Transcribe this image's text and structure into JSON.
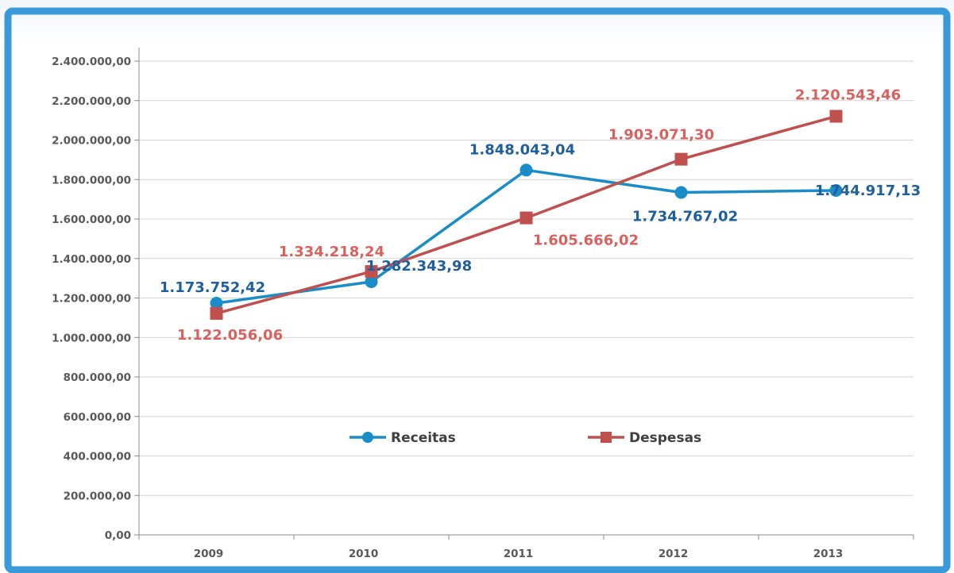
{
  "chart_data": {
    "type": "line",
    "title": "",
    "xlabel": "",
    "ylabel": "",
    "categories": [
      "2009",
      "2010",
      "2011",
      "2012",
      "2013"
    ],
    "ylim": [
      0,
      2400000
    ],
    "y_ticks": [
      "0,00",
      "200.000,00",
      "400.000,00",
      "600.000,00",
      "800.000,00",
      "1.000.000,00",
      "1.200.000,00",
      "1.400.000,00",
      "1.600.000,00",
      "1.800.000,00",
      "2.000.000,00",
      "2.200.000,00",
      "2.400.000,00"
    ],
    "grid": true,
    "legend": "inside-bottom-center",
    "series": [
      {
        "name": "Receitas",
        "color": "#1a8cc8",
        "label_color": "#1f5f9e",
        "marker": "circle",
        "values": [
          1173752.42,
          1282343.98,
          1848043.04,
          1734767.02,
          1744917.13
        ],
        "labels": [
          "1.173.752,42",
          "1.282.343,98",
          "1.848.043,04",
          "1.734.767,02",
          "1.744.917,13"
        ]
      },
      {
        "name": "Despesas",
        "color": "#c0504d",
        "label_color": "#d9625e",
        "marker": "square",
        "values": [
          1122056.06,
          1334218.24,
          1605666.02,
          1903071.3,
          2120543.46
        ],
        "labels": [
          "1.122.056,06",
          "1.334.218,24",
          "1.605.666,02",
          "1.903.071,30",
          "2.120.543,46"
        ]
      }
    ]
  }
}
